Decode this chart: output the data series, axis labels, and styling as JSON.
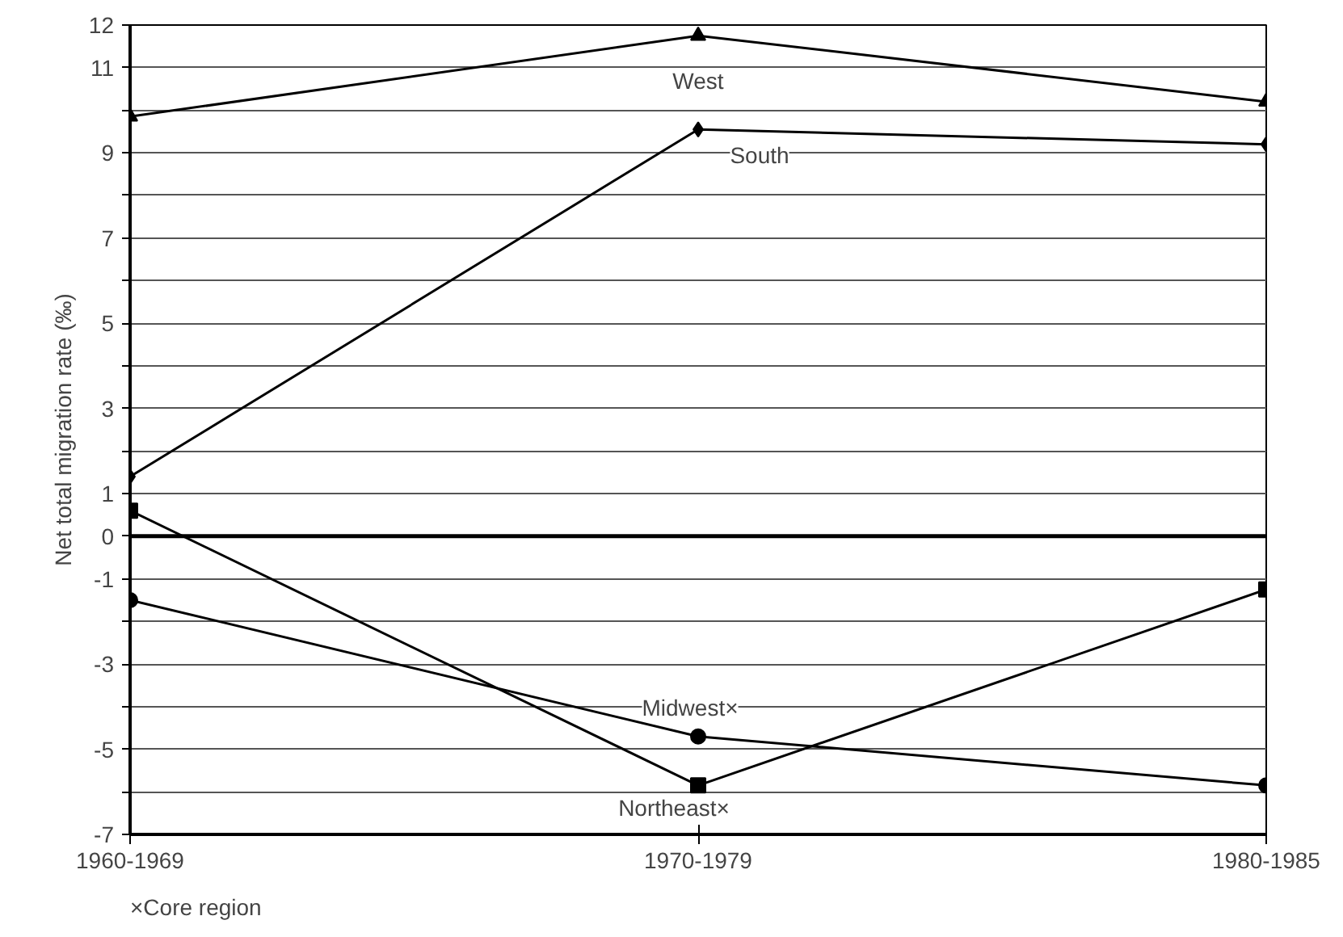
{
  "chart_data": {
    "type": "line",
    "ylabel": "Net total migration rate (‰)",
    "categories": [
      "1960-1969",
      "1970-1979",
      "1980-1985"
    ],
    "series": [
      {
        "name": "West",
        "color": "#000000",
        "marker": "triangle",
        "values": [
          9.85,
          11.75,
          10.2
        ]
      },
      {
        "name": "South",
        "color": "#000000",
        "marker": "diamond",
        "values": [
          1.4,
          9.55,
          9.2
        ]
      },
      {
        "name": "Midwest×",
        "color": "#000000",
        "marker": "circle",
        "values": [
          -1.5,
          -4.7,
          -5.85
        ]
      },
      {
        "name": "Northeast×",
        "color": "#000000",
        "marker": "square",
        "values": [
          0.6,
          -5.85,
          -1.25
        ]
      }
    ],
    "ylim": [
      -7,
      12
    ],
    "yticks": [
      -7,
      {
        "value": -6,
        "label": null
      },
      -5,
      {
        "value": -4,
        "label": null
      },
      -3,
      {
        "value": -2,
        "label": null
      },
      -1,
      0,
      1,
      {
        "value": 2,
        "label": null
      },
      3,
      {
        "value": 4,
        "label": null
      },
      5,
      {
        "value": 6,
        "label": null
      },
      7,
      {
        "value": 8,
        "label": null
      },
      9,
      {
        "value": 10,
        "label": null
      },
      11,
      12
    ],
    "grid": "y",
    "legend": false,
    "line_style": "solid",
    "ref_lines": [
      {
        "axis": "y",
        "value": 0,
        "color": "#000000"
      }
    ],
    "annotations": [
      "×Core region"
    ]
  }
}
